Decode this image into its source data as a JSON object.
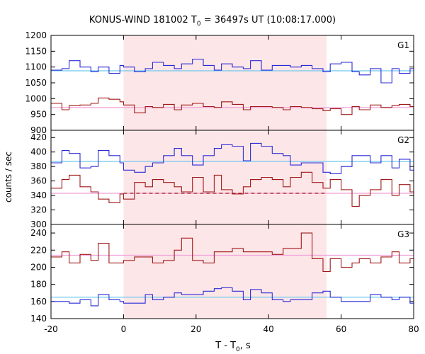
{
  "chart_data": {
    "type": "line",
    "title": "KONUS-WIND 181002 T",
    "title_sub": "0",
    "title_rest": " = 36497s UT (10:08:17.000)",
    "xlabel": "T - T",
    "xlabel_sub": "0",
    "xlabel_rest": ", s",
    "ylabel": "counts / sec",
    "xlim": [
      -20,
      80
    ],
    "x_ticks": [
      -20,
      0,
      20,
      40,
      60,
      80
    ],
    "highlight_interval": [
      0,
      56
    ],
    "step_edges": [
      -20,
      -17,
      -15,
      -12,
      -9,
      -7,
      -4,
      -1,
      0,
      3,
      6,
      8,
      11,
      14,
      16,
      19,
      22,
      25,
      27,
      30,
      33,
      35,
      38,
      41,
      44,
      46,
      49,
      52,
      55,
      57,
      60,
      63,
      65,
      68,
      71,
      74,
      76,
      79,
      80
    ],
    "panels": [
      {
        "name": "G1",
        "ylim": [
          900,
          1200
        ],
        "y_ticks": [
          900,
          950,
          1000,
          1050,
          1100,
          1150,
          1200
        ],
        "series": [
          {
            "color": "#2b2bd6",
            "values": [
              1090,
              1095,
              1120,
              1100,
              1085,
              1100,
              1080,
              1105,
              1100,
              1085,
              1095,
              1115,
              1105,
              1095,
              1110,
              1125,
              1105,
              1090,
              1110,
              1100,
              1095,
              1120,
              1090,
              1105,
              1105,
              1100,
              1105,
              1095,
              1085,
              1110,
              1115,
              1085,
              1075,
              1095,
              1050,
              1095,
              1080,
              1095,
              1095
            ],
            "fit": 1088,
            "fit_color": "#6ec8ee"
          },
          {
            "color": "#a01818",
            "values": [
              985,
              965,
              978,
              980,
              985,
              1002,
              998,
              990,
              980,
              955,
              975,
              972,
              982,
              965,
              980,
              985,
              975,
              972,
              990,
              982,
              965,
              975,
              975,
              972,
              965,
              975,
              972,
              968,
              962,
              968,
              950,
              975,
              965,
              980,
              972,
              978,
              982,
              975,
              975
            ],
            "fit": 972,
            "fit_color": "#f0a0d8"
          }
        ]
      },
      {
        "name": "G2",
        "ylim": [
          300,
          430
        ],
        "y_ticks": [
          300,
          320,
          340,
          360,
          380,
          400,
          420
        ],
        "series": [
          {
            "color": "#2b2bd6",
            "values": [
              385,
              402,
              398,
              378,
              380,
              402,
              395,
              385,
              375,
              372,
              380,
              385,
              395,
              405,
              395,
              382,
              395,
              405,
              410,
              408,
              388,
              412,
              408,
              398,
              395,
              382,
              385,
              385,
              372,
              370,
              380,
              395,
              395,
              385,
              395,
              378,
              390,
              375,
              375
            ],
            "fit": 387,
            "fit_color": "#6ec8ee"
          },
          {
            "color": "#a01818",
            "values": [
              350,
              362,
              368,
              352,
              345,
              335,
              330,
              342,
              335,
              358,
              352,
              362,
              358,
              352,
              345,
              365,
              345,
              368,
              348,
              342,
              352,
              362,
              365,
              362,
              352,
              365,
              372,
              358,
              350,
              362,
              348,
              325,
              340,
              348,
              362,
              340,
              355,
              345,
              345
            ],
            "fit": 343,
            "fit_color": "#f0a0d8",
            "dashed_level": 343,
            "dashed_range": [
              0,
              56
            ]
          }
        ]
      },
      {
        "name": "G3",
        "ylim": [
          140,
          250
        ],
        "y_ticks": [
          140,
          160,
          180,
          200,
          220,
          240
        ],
        "series": [
          {
            "color": "#a01818",
            "values": [
              212,
              218,
              205,
              215,
              208,
              228,
              205,
              205,
              208,
              212,
              212,
              205,
              208,
              220,
              234,
              208,
              205,
              218,
              218,
              222,
              218,
              218,
              218,
              215,
              222,
              222,
              240,
              210,
              195,
              210,
              200,
              205,
              210,
              205,
              212,
              218,
              205,
              210,
              210
            ],
            "fit": 214,
            "fit_color": "#f0a0d8"
          },
          {
            "color": "#2b2bd6",
            "values": [
              160,
              160,
              158,
              162,
              155,
              168,
              162,
              160,
              158,
              158,
              168,
              162,
              165,
              170,
              168,
              168,
              172,
              175,
              176,
              172,
              162,
              174,
              170,
              162,
              160,
              162,
              162,
              170,
              172,
              165,
              160,
              160,
              160,
              168,
              165,
              162,
              165,
              158,
              160
            ],
            "fit": 165,
            "fit_color": "#6ec8ee"
          }
        ]
      }
    ]
  }
}
